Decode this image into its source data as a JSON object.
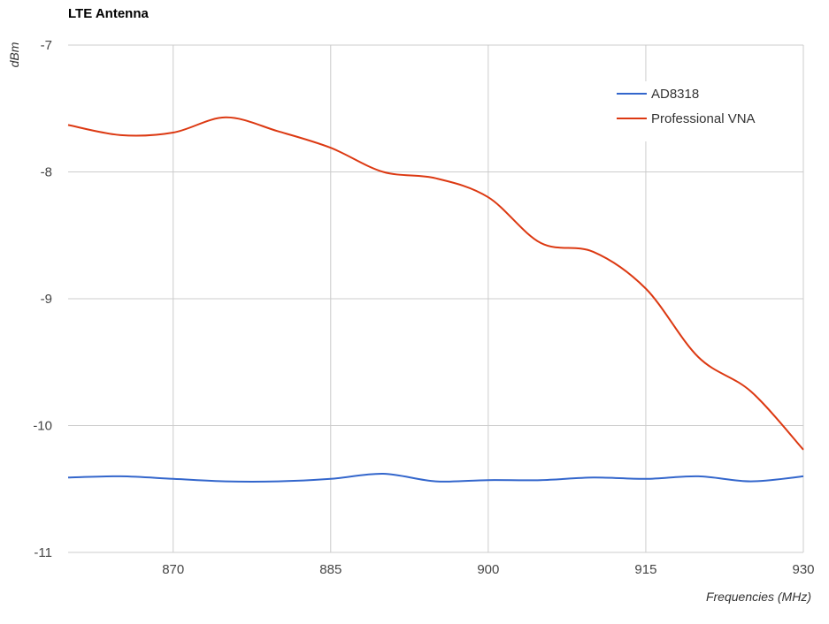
{
  "chart_data": {
    "type": "line",
    "title": "LTE Antenna",
    "xlabel": "Frequencies (MHz)",
    "ylabel": "dBm",
    "xlim": [
      860,
      930
    ],
    "ylim": [
      -11,
      -7
    ],
    "x_ticks": [
      870,
      885,
      900,
      915,
      930
    ],
    "y_ticks": [
      -7,
      -8,
      -9,
      -10,
      -11
    ],
    "grid": true,
    "legend_position": "top-right",
    "series": [
      {
        "name": "AD8318",
        "color": "#3366cc",
        "x": [
          860,
          865,
          870,
          875,
          880,
          885,
          890,
          895,
          900,
          905,
          910,
          915,
          920,
          925,
          930
        ],
        "y": [
          -10.41,
          -10.4,
          -10.42,
          -10.44,
          -10.44,
          -10.42,
          -10.38,
          -10.44,
          -10.43,
          -10.43,
          -10.41,
          -10.42,
          -10.4,
          -10.44,
          -10.4
        ]
      },
      {
        "name": "Professional VNA",
        "color": "#dc3912",
        "x": [
          860,
          865,
          870,
          875,
          880,
          885,
          890,
          895,
          900,
          905,
          910,
          915,
          920,
          925,
          930
        ],
        "y": [
          -7.63,
          -7.71,
          -7.69,
          -7.57,
          -7.68,
          -7.81,
          -8.0,
          -8.05,
          -8.2,
          -8.56,
          -8.63,
          -8.92,
          -9.46,
          -9.73,
          -10.19
        ]
      }
    ]
  }
}
